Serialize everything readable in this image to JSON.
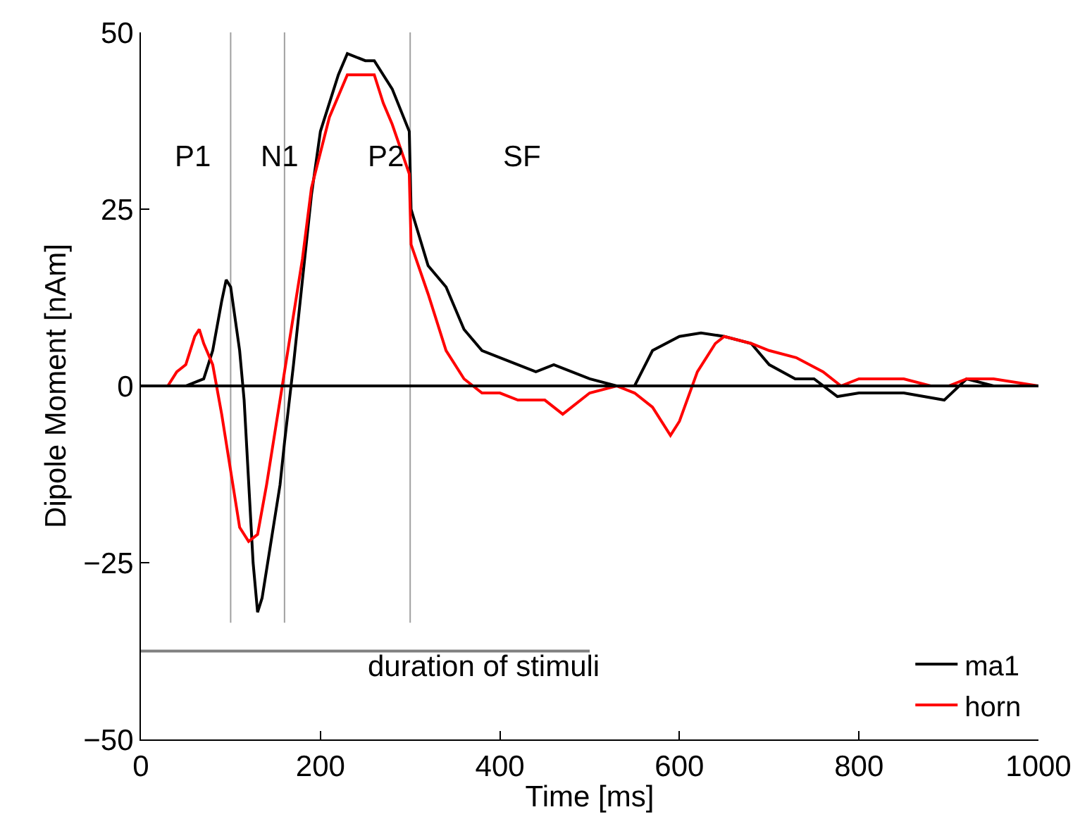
{
  "chart_data": {
    "type": "line",
    "xlabel": "Time [ms]",
    "ylabel": "Dipole Moment [nAm]",
    "xlim": [
      0,
      1000
    ],
    "xticks": [
      0,
      200,
      400,
      600,
      800,
      1000
    ],
    "ylim": [
      -50,
      50
    ],
    "yticks": [
      {
        "value": -50,
        "label": "−50"
      },
      {
        "value": -25,
        "label": "−25"
      },
      0,
      25,
      50
    ],
    "grid": false,
    "legend": "bottom right",
    "line_style": "solid",
    "marker": "none",
    "series": [
      {
        "name": "ma1",
        "color": "#000000",
        "x": [
          0,
          50,
          70,
          80,
          90,
          95,
          100,
          110,
          115,
          125,
          130,
          135,
          145,
          155,
          160,
          170,
          180,
          190,
          200,
          220,
          230,
          250,
          260,
          280,
          299,
          301,
          320,
          340,
          360,
          380,
          400,
          420,
          440,
          460,
          480,
          500,
          530,
          550,
          570,
          600,
          624,
          650,
          680,
          700,
          729,
          750,
          776,
          800,
          850,
          895,
          920,
          950,
          1000
        ],
        "values": [
          0,
          0,
          1,
          5,
          12,
          15,
          14,
          5,
          -2,
          -25,
          -32,
          -30,
          -22,
          -14,
          -8,
          3,
          15,
          27,
          36,
          44,
          47,
          46,
          46,
          42,
          36,
          25,
          17,
          14,
          8,
          5,
          4,
          3,
          2,
          3,
          2,
          1,
          0,
          0,
          5,
          7,
          7.5,
          7,
          6,
          3,
          1,
          1,
          -1.5,
          -1,
          -1,
          -2,
          1,
          0,
          0
        ]
      },
      {
        "name": "horn",
        "color": "#ff0000",
        "x": [
          0,
          30,
          40,
          50,
          60,
          65,
          70,
          80,
          90,
          100,
          110,
          120,
          130,
          140,
          150,
          160,
          170,
          180,
          190,
          210,
          230,
          250,
          260,
          270,
          280,
          299,
          301,
          320,
          340,
          360,
          380,
          400,
          420,
          450,
          470,
          500,
          530,
          550,
          570,
          590,
          600,
          620,
          640,
          650,
          680,
          700,
          730,
          760,
          780,
          800,
          850,
          880,
          900,
          920,
          950,
          1000
        ],
        "values": [
          0,
          0,
          2,
          3,
          7,
          8,
          6,
          3,
          -4,
          -12,
          -20,
          -22,
          -21,
          -14,
          -6,
          2,
          10,
          18,
          28,
          38,
          44,
          44,
          44,
          40,
          37,
          30,
          20,
          13,
          5,
          1,
          -1,
          -1,
          -2,
          -2,
          -4,
          -1,
          0,
          -1,
          -3,
          -7,
          -5,
          2,
          6,
          7,
          6,
          5,
          4,
          2,
          0,
          1,
          1,
          0,
          0,
          1,
          1,
          0
        ]
      },
      {
        "color": "#808080",
        "x": [
          0,
          500
        ],
        "values": [
          -37.5,
          -37.5
        ]
      }
    ],
    "ref_lines": [
      {
        "axis": "y",
        "value": 0,
        "color": "#000000"
      },
      {
        "axis": "x",
        "value": 100,
        "color": "#a0a0a0"
      },
      {
        "axis": "x",
        "value": 160,
        "color": "#a0a0a0"
      },
      {
        "axis": "x",
        "value": 300,
        "color": "#a0a0a0"
      }
    ],
    "annotations": [
      "P1",
      "N1",
      "P2",
      "SF",
      "duration of stimuli"
    ]
  }
}
